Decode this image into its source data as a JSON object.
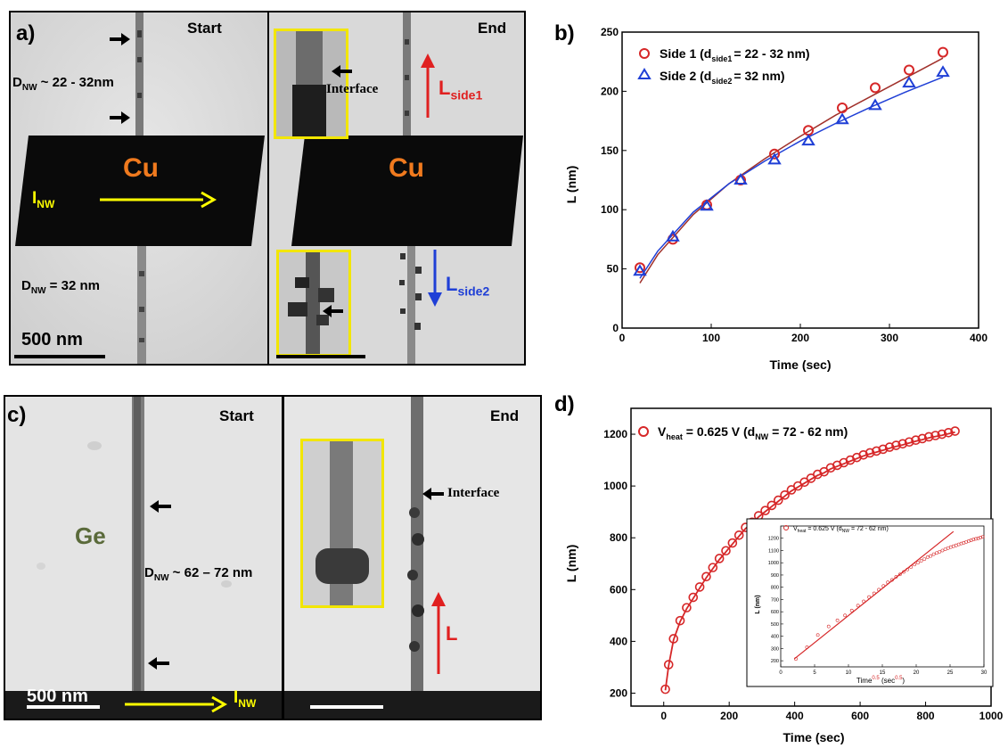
{
  "panel_a": {
    "letter": "a)",
    "start_label": "Start",
    "end_label": "End",
    "d_nw_top_pre": "D",
    "d_nw_top_sub": "NW",
    "d_nw_top_post": " ~ 22 - 32nm",
    "d_nw_bot_pre": "D",
    "d_nw_bot_sub": "NW",
    "d_nw_bot_post": " = 32 nm",
    "material_left": "Cu",
    "material_right": "Cu",
    "current_pre": "I",
    "current_sub": "NW",
    "interface_label": "Interface",
    "l_side1_pre": "L",
    "l_side1_sub": "side1",
    "l_side2_pre": "L",
    "l_side2_sub": "side2",
    "scale_label": "500 nm"
  },
  "panel_c": {
    "letter": "c)",
    "start_label": "Start",
    "end_label": "End",
    "material": "Ge",
    "d_nw_pre": "D",
    "d_nw_sub": "NW",
    "d_nw_post": " ~ 62 – 72 nm",
    "interface_label": "Interface",
    "l_label": "L",
    "current_pre": "I",
    "current_sub": "NW",
    "scale_label": "500 nm"
  },
  "chart_data": [
    {
      "id": "b",
      "letter": "b)",
      "type": "scatter",
      "xlabel": "Time (sec)",
      "ylabel": "L (nm)",
      "xlim": [
        0,
        400
      ],
      "ylim": [
        0,
        250
      ],
      "xticks": [
        0,
        100,
        200,
        300,
        400
      ],
      "yticks": [
        0,
        50,
        100,
        150,
        200,
        250
      ],
      "legend_position": "top-left",
      "series": [
        {
          "name": "Side 1 (d",
          "name_sub": "side1",
          "name_post": "= 22 - 32 nm)",
          "marker": "circle",
          "color": "#d62728",
          "x": [
            20,
            57,
            95,
            133,
            171,
            209,
            247,
            284,
            322,
            360
          ],
          "y": [
            51,
            75,
            104,
            125,
            147,
            167,
            186,
            203,
            218,
            233
          ],
          "fit": [
            [
              20,
              38
            ],
            [
              40,
              62
            ],
            [
              80,
              96
            ],
            [
              120,
              122
            ],
            [
              160,
              143
            ],
            [
              200,
              162
            ],
            [
              240,
              180
            ],
            [
              280,
              196
            ],
            [
              320,
              212
            ],
            [
              360,
              228
            ]
          ]
        },
        {
          "name": "Side 2 (d",
          "name_sub": "side2",
          "name_post": "= 32 nm)",
          "marker": "triangle",
          "color": "#1f3fd6",
          "x": [
            20,
            57,
            95,
            133,
            171,
            209,
            247,
            284,
            322,
            360
          ],
          "y": [
            48,
            77,
            103,
            125,
            142,
            158,
            176,
            188,
            207,
            216
          ],
          "fit": [
            [
              20,
              42
            ],
            [
              40,
              65
            ],
            [
              80,
              98
            ],
            [
              120,
              122
            ],
            [
              160,
              141
            ],
            [
              200,
              158
            ],
            [
              240,
              173
            ],
            [
              280,
              187
            ],
            [
              320,
              200
            ],
            [
              360,
              212
            ]
          ]
        }
      ]
    },
    {
      "id": "d",
      "letter": "d)",
      "type": "scatter",
      "xlabel": "Time (sec)",
      "ylabel": "L (nm)",
      "xlim": [
        -100,
        1000
      ],
      "ylim": [
        150,
        1300
      ],
      "xticks": [
        0,
        200,
        400,
        600,
        800,
        1000
      ],
      "yticks": [
        200,
        400,
        600,
        800,
        1000,
        1200
      ],
      "legend_position": "top-left",
      "series": [
        {
          "name_pre": "V",
          "name_sub": "heat",
          "name": " = 0.625 V  (d",
          "name_sub2": "NW",
          "name_post": " = 72 - 62 nm)",
          "marker": "circle",
          "color": "#d62728",
          "x": [
            5,
            15,
            30,
            50,
            70,
            90,
            110,
            130,
            150,
            170,
            190,
            210,
            230,
            250,
            270,
            290,
            310,
            330,
            350,
            370,
            390,
            410,
            430,
            450,
            470,
            490,
            510,
            530,
            550,
            570,
            590,
            610,
            630,
            650,
            670,
            690,
            710,
            730,
            750,
            770,
            790,
            810,
            830,
            850,
            870,
            890
          ],
          "y": [
            215,
            310,
            410,
            480,
            530,
            570,
            610,
            650,
            685,
            720,
            750,
            780,
            810,
            840,
            860,
            885,
            905,
            925,
            945,
            965,
            985,
            1000,
            1015,
            1030,
            1045,
            1055,
            1070,
            1080,
            1090,
            1100,
            1110,
            1120,
            1128,
            1135,
            1142,
            1150,
            1157,
            1163,
            1170,
            1177,
            1183,
            1190,
            1195,
            1200,
            1206,
            1212
          ]
        }
      ],
      "inset": {
        "type": "scatter",
        "xlabel_pre": "Time",
        "xlabel_sup": "0.5",
        "xlabel_mid": " (sec",
        "xlabel_sup2": "0.5",
        "xlabel_post": ")",
        "ylabel": "L (nm)",
        "xlim": [
          0,
          30
        ],
        "ylim": [
          150,
          1300
        ],
        "xticks": [
          0,
          5,
          10,
          15,
          20,
          25,
          30
        ],
        "yticks": [
          200,
          300,
          400,
          500,
          600,
          700,
          800,
          900,
          1000,
          1100,
          1200
        ],
        "legend_pre": "V",
        "legend_sub": "heat",
        "legend_mid": " = 0.625 V (d",
        "legend_sub2": "NW",
        "legend_post": " = 72 - 62 nm)",
        "fit_line": [
          [
            2,
            215
          ],
          [
            25.5,
            1255
          ]
        ]
      }
    }
  ]
}
